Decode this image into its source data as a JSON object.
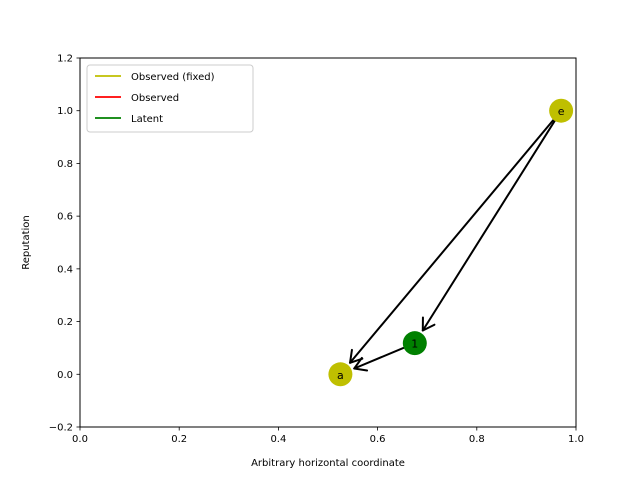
{
  "chart_data": {
    "type": "scatter",
    "title": "",
    "xlabel": "Arbitrary horizontal coordinate",
    "ylabel": "Reputation",
    "xlim": [
      0.0,
      1.0
    ],
    "ylim": [
      -0.2,
      1.2
    ],
    "xticks": [
      0.0,
      0.2,
      0.4,
      0.6,
      0.8,
      1.0
    ],
    "xtick_labels": [
      "0.0",
      "0.2",
      "0.4",
      "0.6",
      "0.8",
      "1.0"
    ],
    "yticks": [
      -0.2,
      0.0,
      0.2,
      0.4,
      0.6,
      0.8,
      1.0,
      1.2
    ],
    "ytick_labels": [
      "−0.2",
      "0.0",
      "0.2",
      "0.4",
      "0.6",
      "0.8",
      "1.0",
      "1.2"
    ],
    "grid": false,
    "legend": {
      "placement": "upper-left",
      "entries": [
        {
          "label": "Observed (fixed)",
          "color": "#bfbf00"
        },
        {
          "label": "Observed",
          "color": "#ff0000"
        },
        {
          "label": "Latent",
          "color": "#008000"
        }
      ]
    },
    "nodes": [
      {
        "label": "e",
        "x": 0.97,
        "y": 1.0,
        "category": "Observed (fixed)",
        "color": "#bfbf00"
      },
      {
        "label": "1",
        "x": 0.675,
        "y": 0.118,
        "category": "Latent",
        "color": "#008000"
      },
      {
        "label": "a",
        "x": 0.525,
        "y": 0.0,
        "category": "Observed (fixed)",
        "color": "#bfbf00"
      }
    ],
    "edges": [
      {
        "from": "e",
        "to": "a"
      },
      {
        "from": "e",
        "to": "1"
      },
      {
        "from": "1",
        "to": "a"
      }
    ]
  }
}
